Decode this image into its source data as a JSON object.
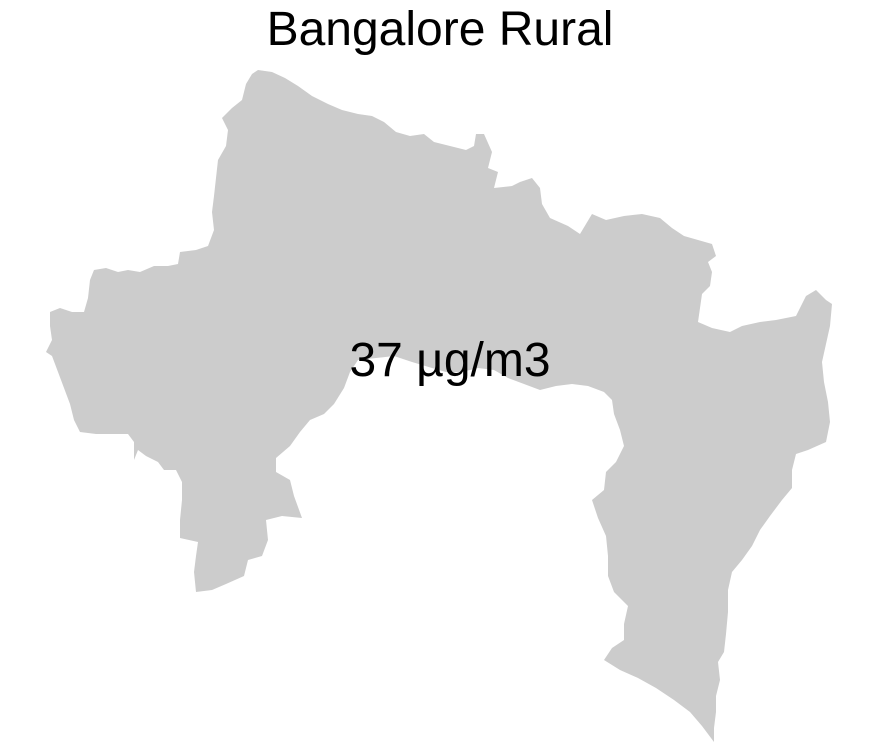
{
  "map": {
    "title": "Bangalore Rural",
    "region_name": "Bangalore Rural",
    "value_label": "37 µg/m3",
    "fill_color": "#cccccc",
    "background_color": "#ffffff"
  }
}
